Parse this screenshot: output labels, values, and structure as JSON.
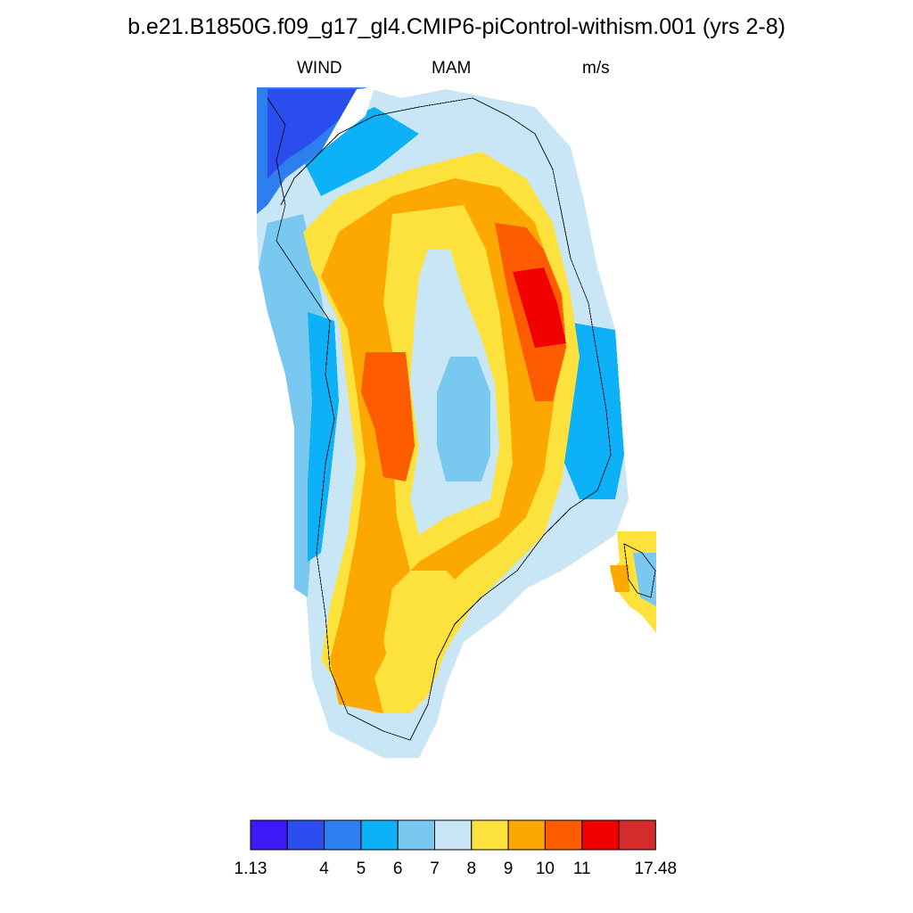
{
  "title": "b.e21.B1850G.f09_g17_gl4.CMIP6-piControl-withism.001 (yrs 2-8)",
  "subtitle": {
    "variable": "WIND",
    "season": "MAM",
    "units": "m/s"
  },
  "colorbar": {
    "colors": [
      "#3f18f6",
      "#2b4ded",
      "#2d7ff0",
      "#0db1f7",
      "#79c8f0",
      "#c9e6f7",
      "#fde23e",
      "#fca800",
      "#fd5d00",
      "#f20000",
      "#d42b2b"
    ],
    "tick_labels": [
      "1.13",
      "4",
      "5",
      "6",
      "7",
      "8",
      "9",
      "10",
      "11",
      "17.48"
    ],
    "tick_boundaries": [
      0,
      2,
      3,
      4,
      5,
      6,
      7,
      8,
      9,
      11
    ]
  },
  "map_data": {
    "description_region": "Greenland",
    "field": "WIND",
    "season": "MAM",
    "units": "m/s",
    "value_range": [
      1.13,
      17.48
    ],
    "max_region": "east-central slope",
    "min_region": "northwest corner"
  }
}
